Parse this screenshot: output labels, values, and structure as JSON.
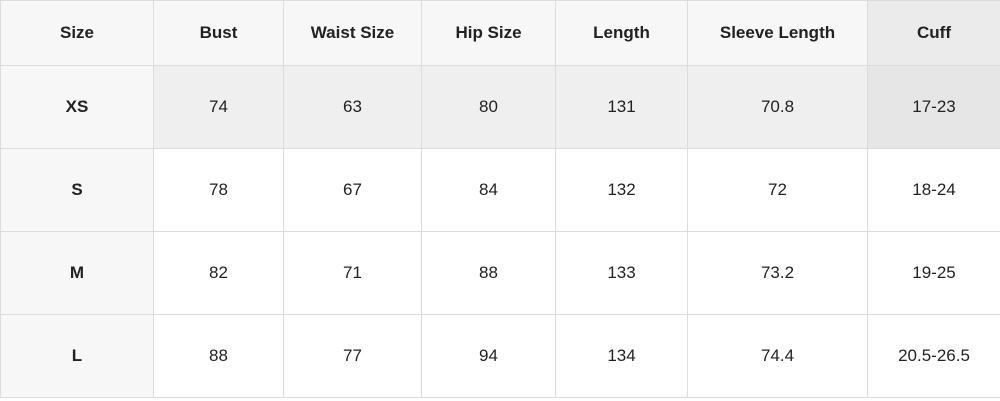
{
  "table": {
    "header": [
      "Size",
      "Bust",
      "Waist Size",
      "Hip Size",
      "Length",
      "Sleeve Length",
      "Cuff"
    ],
    "rows": [
      [
        "XS",
        "74",
        "63",
        "80",
        "131",
        "70.8",
        "17-23"
      ],
      [
        "S",
        "78",
        "67",
        "84",
        "132",
        "72",
        "18-24"
      ],
      [
        "M",
        "82",
        "71",
        "88",
        "133",
        "73.2",
        "19-25"
      ],
      [
        "L",
        "88",
        "77",
        "94",
        "134",
        "74.4",
        "20.5-26.5"
      ]
    ]
  }
}
